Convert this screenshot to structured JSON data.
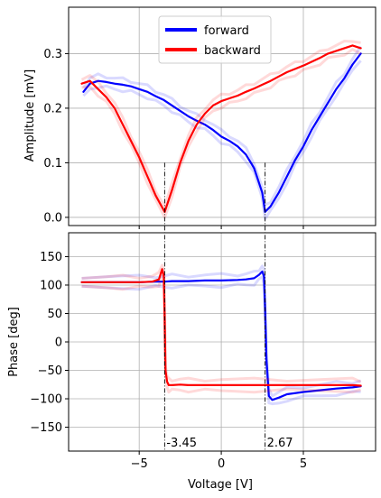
{
  "chart_data": [
    {
      "type": "line",
      "xlabel": "",
      "ylabel": "Amplitude [mV]",
      "xlim": [
        -9.3,
        9.4
      ],
      "ylim": [
        -0.015,
        0.385
      ],
      "xticks": [
        -5,
        0,
        5
      ],
      "xtick_labels": [
        "",
        "",
        ""
      ],
      "yticks": [
        0.0,
        0.1,
        0.2,
        0.3
      ],
      "ytick_labels": [
        "0.0",
        "0.1",
        "0.2",
        "0.3"
      ],
      "grid": true,
      "legend": "top-center",
      "series": [
        {
          "name": "forward",
          "color": "#0000ff",
          "x": [
            -8.4,
            -8,
            -7.5,
            -7,
            -6.5,
            -6,
            -5.5,
            -5,
            -4.5,
            -4,
            -3.5,
            -3,
            -2.5,
            -2,
            -1.5,
            -1,
            -0.5,
            0,
            0.5,
            1,
            1.5,
            2,
            2.5,
            2.67,
            3,
            3.5,
            4,
            4.5,
            5,
            5.5,
            6,
            6.5,
            7,
            7.5,
            8,
            8.5
          ],
          "y": [
            0.23,
            0.245,
            0.25,
            0.248,
            0.245,
            0.243,
            0.24,
            0.235,
            0.23,
            0.222,
            0.215,
            0.205,
            0.195,
            0.185,
            0.177,
            0.17,
            0.16,
            0.148,
            0.14,
            0.13,
            0.115,
            0.09,
            0.045,
            0.01,
            0.02,
            0.045,
            0.075,
            0.105,
            0.13,
            0.16,
            0.185,
            0.21,
            0.235,
            0.255,
            0.28,
            0.3
          ]
        },
        {
          "name": "backward",
          "color": "#ff0000",
          "x": [
            -8.5,
            -8,
            -7.5,
            -7,
            -6.5,
            -6,
            -5.5,
            -5,
            -4.5,
            -4,
            -3.45,
            -3,
            -2.5,
            -2,
            -1.5,
            -1,
            -0.5,
            0,
            0.5,
            1,
            1.5,
            2,
            2.5,
            3,
            3.5,
            4,
            4.5,
            5,
            5.5,
            6,
            6.5,
            7,
            7.5,
            8,
            8.5
          ],
          "y": [
            0.245,
            0.25,
            0.235,
            0.22,
            0.2,
            0.17,
            0.14,
            0.11,
            0.075,
            0.04,
            0.01,
            0.05,
            0.1,
            0.14,
            0.17,
            0.19,
            0.205,
            0.213,
            0.218,
            0.223,
            0.23,
            0.236,
            0.243,
            0.25,
            0.258,
            0.266,
            0.272,
            0.278,
            0.285,
            0.292,
            0.3,
            0.305,
            0.31,
            0.315,
            0.31
          ]
        }
      ]
    },
    {
      "type": "line",
      "xlabel": "Voltage [V]",
      "ylabel": "Phase [deg]",
      "xlim": [
        -9.3,
        9.4
      ],
      "ylim": [
        -192,
        192
      ],
      "xticks": [
        -5,
        0,
        5
      ],
      "xtick_labels": [
        "−5",
        "0",
        "5"
      ],
      "yticks": [
        -150,
        -100,
        -50,
        0,
        50,
        100,
        150
      ],
      "ytick_labels": [
        "−150",
        "−100",
        "−50",
        "0",
        "50",
        "100",
        "150"
      ],
      "grid": true,
      "series": [
        {
          "name": "forward",
          "color": "#0000ff",
          "x": [
            -8.5,
            -7,
            -5,
            -4,
            -3.5,
            -3,
            -2,
            -1,
            0,
            1,
            1.5,
            2,
            2.3,
            2.5,
            2.6,
            2.67,
            2.75,
            2.9,
            3.1,
            3.5,
            4,
            5,
            6,
            7,
            8,
            8.5
          ],
          "y": [
            105,
            105,
            105,
            106,
            106,
            107,
            107,
            108,
            108,
            109,
            110,
            112,
            118,
            124,
            115,
            60,
            -30,
            -95,
            -102,
            -98,
            -92,
            -88,
            -85,
            -82,
            -80,
            -78
          ]
        },
        {
          "name": "backward",
          "color": "#ff0000",
          "x": [
            -8.5,
            -7,
            -6,
            -5,
            -4.2,
            -3.8,
            -3.6,
            -3.5,
            -3.45,
            -3.4,
            -3.3,
            -3.2,
            -3,
            -2.5,
            -2,
            -1,
            0,
            2,
            4,
            6,
            8,
            8.5
          ],
          "y": [
            105,
            105,
            105,
            105,
            106,
            110,
            128,
            115,
            40,
            -50,
            -70,
            -76,
            -76,
            -75,
            -76,
            -76,
            -76,
            -76,
            -76,
            -76,
            -76,
            -77
          ]
        }
      ]
    }
  ],
  "annotations": [
    {
      "x": -3.45,
      "label": "-3.45"
    },
    {
      "x": 2.67,
      "label": "2.67"
    }
  ]
}
